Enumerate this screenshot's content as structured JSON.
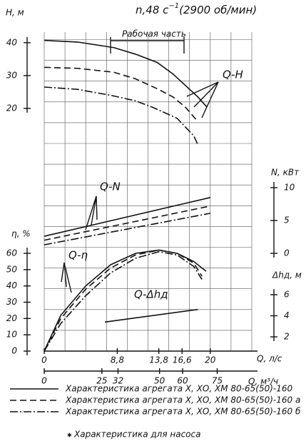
{
  "chart_data": {
    "type": "line",
    "title": "n,48 с",
    "title_exp": "−1",
    "title_rest": "(2900 об/мин)",
    "working_range_label": "Рабочая часть",
    "xlabel": "Q, л/с",
    "xlim": [
      0,
      25
    ],
    "xticks": [
      0,
      {
        "value": 8.8,
        "label": "8,8"
      },
      {
        "value": 13.8,
        "label": "13,8"
      },
      {
        "value": 16.6,
        "label": "16,6"
      },
      20
    ],
    "x2label": "Q, м³/ч",
    "x2lim": [
      0,
      90
    ],
    "x2ticks": [
      0,
      25,
      32,
      50,
      60,
      75
    ],
    "grid": true,
    "pump_note": "Характеристика для насоса",
    "panels": [
      {
        "ylabel": "Н, м",
        "curve_label": "Q-H",
        "y_axis_side": "left",
        "ylim": [
          8,
          43
        ],
        "yticks": [
          20,
          30,
          40
        ],
        "series": [
          {
            "name": "Характеристика агрегата Х, ХО, ХМ 80-65(50)-160",
            "dash": "solid",
            "x": [
              0,
              4,
              8.4,
              11,
              13.6,
              15.5,
              17,
              18.5,
              19.6
            ],
            "values": [
              40.7,
              40.2,
              38.5,
              36.5,
              34,
              30.5,
              27,
              23.5,
              20.4
            ]
          },
          {
            "name": "Характеристика агрегата Х, ХО, ХМ 80-65(50)-160 а",
            "dash": "dashed",
            "x": [
              0,
              4,
              8.4,
              11,
              13.6,
              15.5,
              17,
              18.5
            ],
            "values": [
              32.5,
              32.2,
              31,
              29,
              26,
              23.5,
              20.4,
              16
            ]
          },
          {
            "name": "Характеристика агрегата Х, ХО, ХМ 80-65(50)-160 б",
            "dash": "dashdot",
            "x": [
              0,
              4,
              8,
              11,
              13,
              16,
              18,
              18.5
            ],
            "values": [
              26.5,
              25.8,
              24,
              22.3,
              20.4,
              17,
              11.7,
              9
            ]
          }
        ]
      },
      {
        "ylabel": "N, кВт",
        "curve_label": "Q-N",
        "y_axis_side": "right",
        "ylim": [
          0,
          10
        ],
        "yticks": [
          0,
          5,
          10
        ],
        "series": [
          {
            "dash": "solid",
            "x": [
              0,
              20
            ],
            "values": [
              2.6,
              8.5
            ]
          },
          {
            "dash": "dashed",
            "x": [
              0,
              20
            ],
            "values": [
              2.0,
              7.2
            ]
          },
          {
            "dash": "dashdot",
            "x": [
              0,
              20
            ],
            "values": [
              1.3,
              6.1
            ]
          }
        ]
      },
      {
        "ylabel": "η, %",
        "curve_label": "Q-η",
        "y_axis_side": "left",
        "ylim": [
          0,
          60
        ],
        "yticks": [
          0,
          10,
          20,
          30,
          40,
          50,
          60
        ],
        "series": [
          {
            "dash": "solid",
            "x": [
              0,
              2,
              5,
              8,
              11,
              13.8,
              16,
              18,
              19.5
            ],
            "values": [
              0,
              22,
              40,
              53,
              60,
              62,
              60,
              55,
              49
            ]
          },
          {
            "dash": "dashed",
            "x": [
              0,
              2,
              5,
              8,
              11,
              13.8,
              16,
              18,
              19
            ],
            "values": [
              0,
              20,
              38,
              51,
              59,
              62,
              60,
              54,
              46
            ]
          },
          {
            "dash": "dashdot",
            "x": [
              0,
              2,
              5,
              8,
              11,
              13.8,
              16,
              18,
              19
            ],
            "values": [
              0,
              17,
              34,
              48,
              57,
              61,
              59,
              52,
              44
            ]
          }
        ]
      },
      {
        "ylabel": "Δhд, м",
        "curve_label": "Q-Δhд",
        "y_axis_side": "right",
        "ylim": [
          2,
          6
        ],
        "yticks": [
          2,
          4,
          6
        ],
        "series": [
          {
            "dash": "solid",
            "x": [
              7.3,
              18.5
            ],
            "values": [
              3.4,
              4.6
            ]
          }
        ]
      }
    ]
  }
}
